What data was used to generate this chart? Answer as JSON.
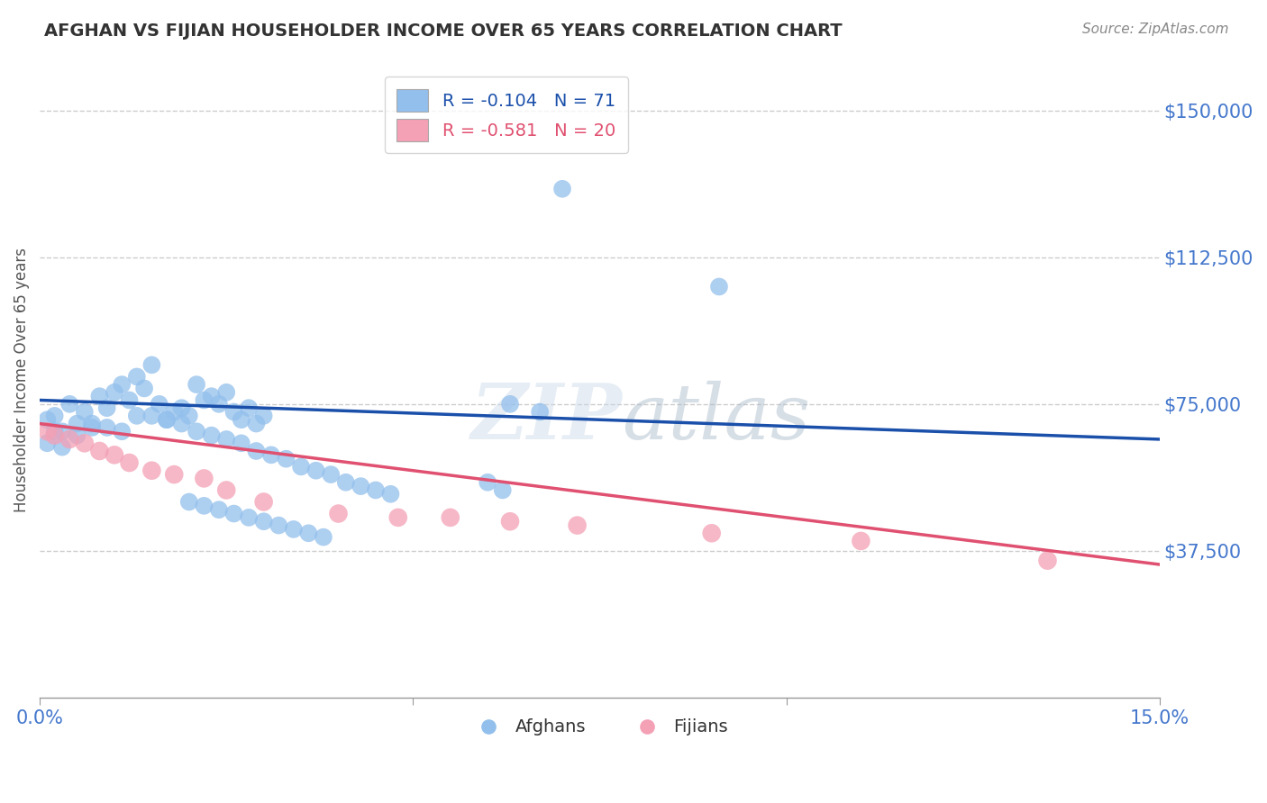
{
  "title": "AFGHAN VS FIJIAN HOUSEHOLDER INCOME OVER 65 YEARS CORRELATION CHART",
  "source": "Source: ZipAtlas.com",
  "ylabel": "Householder Income Over 65 years",
  "xlim": [
    0.0,
    0.15
  ],
  "ylim": [
    0,
    162500
  ],
  "yticks": [
    37500,
    75000,
    112500,
    150000
  ],
  "ytick_labels": [
    "$37,500",
    "$75,000",
    "$112,500",
    "$150,000"
  ],
  "xtick_vals": [
    0.0,
    0.05,
    0.1,
    0.15
  ],
  "xtick_labels": [
    "0.0%",
    "",
    "",
    "15.0%"
  ],
  "afghan_color": "#92BFEC",
  "fijian_color": "#F4A0B5",
  "afghan_line_color": "#1A4FAA",
  "fijian_line_color": "#E05070",
  "legend_afghan_R": "-0.104",
  "legend_afghan_N": "71",
  "legend_fijian_R": "-0.581",
  "legend_fijian_N": "20",
  "watermark": "ZIPatlas",
  "grid_color": "#CCCCCC",
  "background_color": "#FFFFFF",
  "title_color": "#333333",
  "axis_label_color": "#555555",
  "ytick_label_color": "#4477CC",
  "xtick_label_color": "#4477CC",
  "afghan_x": [
    0.001,
    0.002,
    0.003,
    0.004,
    0.005,
    0.006,
    0.007,
    0.008,
    0.009,
    0.01,
    0.011,
    0.012,
    0.013,
    0.014,
    0.015,
    0.016,
    0.017,
    0.018,
    0.019,
    0.02,
    0.021,
    0.022,
    0.023,
    0.024,
    0.025,
    0.026,
    0.027,
    0.028,
    0.029,
    0.03,
    0.001,
    0.002,
    0.003,
    0.005,
    0.007,
    0.009,
    0.011,
    0.013,
    0.015,
    0.017,
    0.019,
    0.021,
    0.023,
    0.025,
    0.027,
    0.029,
    0.031,
    0.033,
    0.035,
    0.037,
    0.039,
    0.041,
    0.043,
    0.045,
    0.047,
    0.02,
    0.022,
    0.024,
    0.026,
    0.028,
    0.03,
    0.032,
    0.034,
    0.036,
    0.038,
    0.063,
    0.067,
    0.091,
    0.06,
    0.062,
    0.07
  ],
  "afghan_y": [
    71000,
    72000,
    68000,
    75000,
    70000,
    73000,
    69000,
    77000,
    74000,
    78000,
    80000,
    76000,
    82000,
    79000,
    85000,
    75000,
    71000,
    73000,
    74000,
    72000,
    80000,
    76000,
    77000,
    75000,
    78000,
    73000,
    71000,
    74000,
    70000,
    72000,
    65000,
    68000,
    64000,
    67000,
    70000,
    69000,
    68000,
    72000,
    72000,
    71000,
    70000,
    68000,
    67000,
    66000,
    65000,
    63000,
    62000,
    61000,
    59000,
    58000,
    57000,
    55000,
    54000,
    53000,
    52000,
    50000,
    49000,
    48000,
    47000,
    46000,
    45000,
    44000,
    43000,
    42000,
    41000,
    75000,
    73000,
    105000,
    55000,
    53000,
    130000
  ],
  "fijian_x": [
    0.001,
    0.002,
    0.004,
    0.006,
    0.008,
    0.01,
    0.012,
    0.015,
    0.018,
    0.022,
    0.025,
    0.03,
    0.04,
    0.048,
    0.055,
    0.063,
    0.072,
    0.09,
    0.11,
    0.135
  ],
  "fijian_y": [
    68000,
    67000,
    66000,
    65000,
    63000,
    62000,
    60000,
    58000,
    57000,
    56000,
    53000,
    50000,
    47000,
    46000,
    46000,
    45000,
    44000,
    42000,
    40000,
    35000
  ]
}
